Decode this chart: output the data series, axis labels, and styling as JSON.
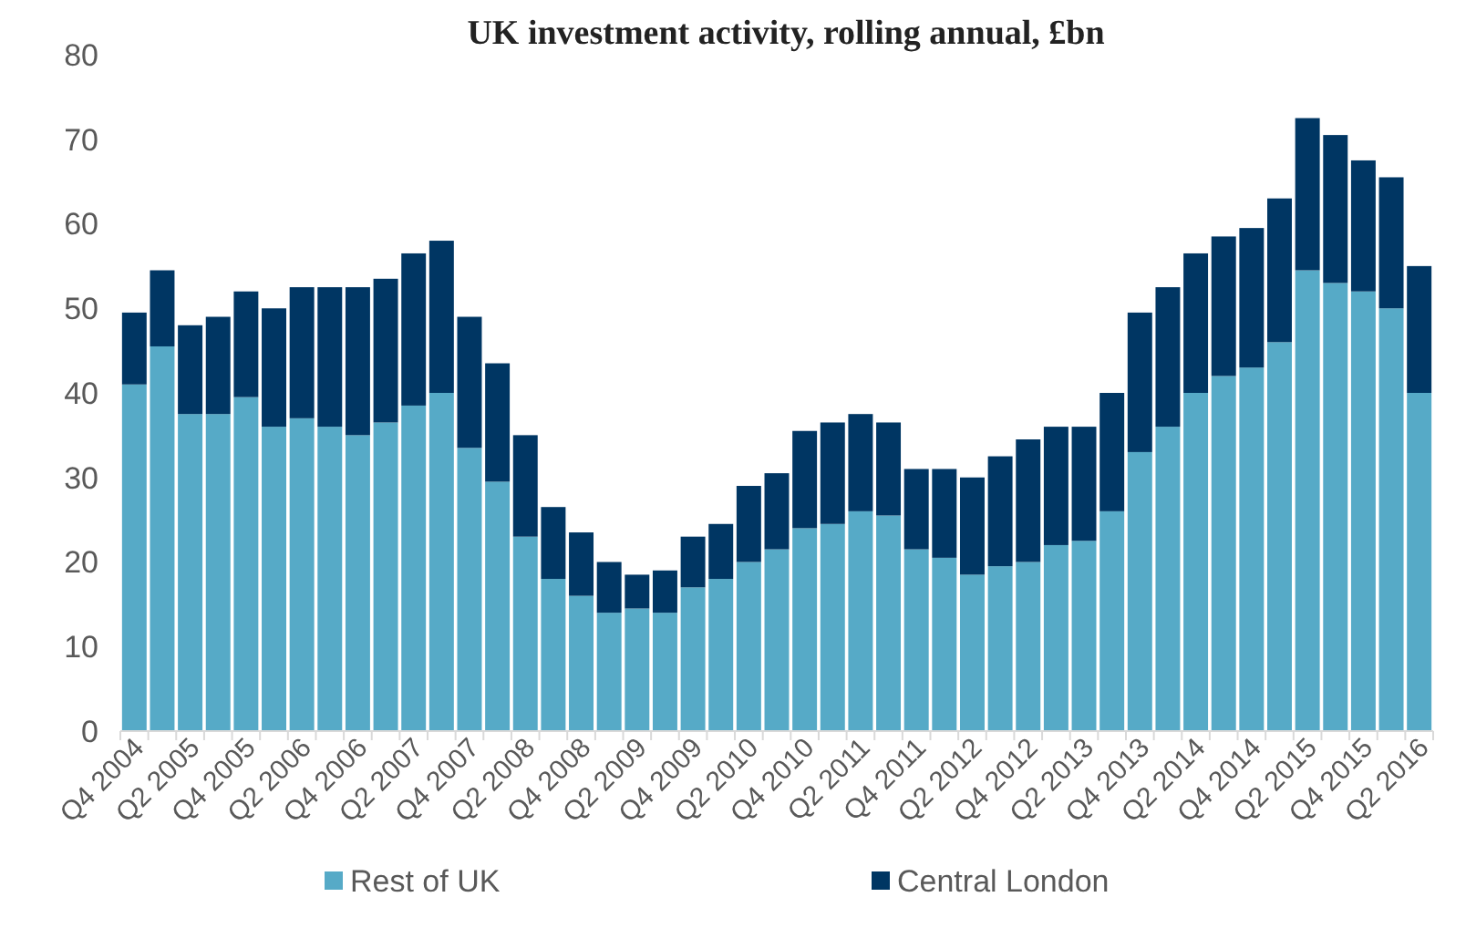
{
  "chart_data": {
    "type": "bar",
    "title": "UK investment activity, rolling annual, £bn",
    "stacked": true,
    "legend": "bottom",
    "grid": false,
    "categories": [
      "Q4 2004",
      null,
      "Q2 2005",
      null,
      "Q4 2005",
      null,
      "Q2 2006",
      null,
      "Q4 2006",
      null,
      "Q2 2007",
      null,
      "Q4 2007",
      null,
      "Q2 2008",
      null,
      "Q4 2008",
      null,
      "Q2 2009",
      null,
      "Q4 2009",
      null,
      "Q2 2010",
      null,
      "Q4 2010",
      null,
      "Q2 2011",
      null,
      "Q4 2011",
      null,
      "Q2 2012",
      null,
      "Q4 2012",
      null,
      "Q2 2013",
      null,
      "Q4 2013",
      null,
      "Q2 2014",
      null,
      "Q4 2014",
      null,
      "Q2 2015",
      null,
      "Q4 2015",
      null,
      "Q2 2016"
    ],
    "series": [
      {
        "name": "Rest of UK",
        "color": "#56aac7",
        "values": [
          41,
          45.5,
          37.5,
          37.5,
          39.5,
          36,
          37,
          36,
          35,
          36.5,
          38.5,
          40,
          33.5,
          29.5,
          23,
          18,
          16,
          14,
          14.5,
          14,
          17,
          18,
          20,
          21.5,
          24,
          24.5,
          26,
          25.5,
          21.5,
          20.5,
          18.5,
          19.5,
          20,
          22,
          22.5,
          26,
          33,
          36,
          40,
          42,
          43,
          46,
          54.5,
          53,
          52,
          50,
          40
        ]
      },
      {
        "name": "Central London",
        "color": "#003663",
        "values": [
          8.5,
          9,
          10.5,
          11.5,
          12.5,
          14,
          15.5,
          16.5,
          17.5,
          17,
          18,
          18,
          15.5,
          14,
          12,
          8.5,
          7.5,
          6,
          4,
          5,
          6,
          6.5,
          9,
          9,
          11.5,
          12,
          11.5,
          11,
          9.5,
          10.5,
          11.5,
          13,
          14.5,
          14,
          13.5,
          14,
          16.5,
          16.5,
          16.5,
          16.5,
          16.5,
          17,
          18,
          17.5,
          15.5,
          15.5,
          15
        ]
      }
    ],
    "ylim": [
      0,
      80
    ],
    "yticks": [
      0,
      10,
      20,
      30,
      40,
      50,
      60,
      70,
      80
    ]
  }
}
